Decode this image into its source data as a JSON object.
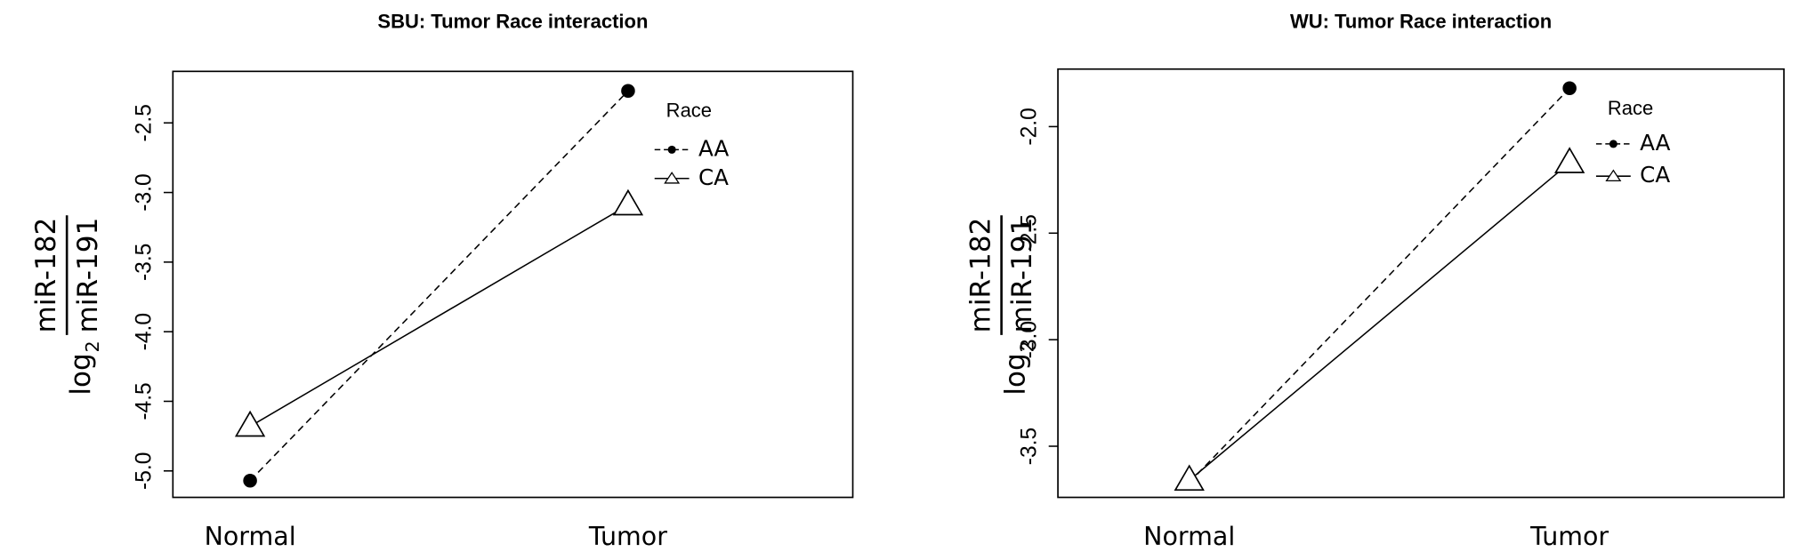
{
  "chart_data": [
    {
      "type": "line",
      "title": "SBU: Tumor Race interaction",
      "ylabel": {
        "prefix": "log",
        "subscript": "2",
        "numerator": "miR-182",
        "denominator": "miR-191"
      },
      "categories": [
        "Normal",
        "Tumor"
      ],
      "legend_title": "Race",
      "series": [
        {
          "name": "AA",
          "color": "#000000",
          "marker": "circle",
          "dashed": true,
          "values": [
            -5.07,
            -2.27
          ]
        },
        {
          "name": "CA",
          "color": "#000000",
          "marker": "triangle",
          "dashed": false,
          "values": [
            -4.68,
            -3.09
          ]
        }
      ],
      "ylim": [
        -5.19,
        -2.13
      ],
      "yticks": [
        {
          "value": -5,
          "label": "-5.0"
        },
        -4.5,
        {
          "value": -4,
          "label": "-4.0"
        },
        -3.5,
        {
          "value": -3,
          "label": "-3.0"
        },
        -2.5
      ],
      "grid": false
    },
    {
      "type": "line",
      "title": "WU: Tumor Race interaction",
      "ylabel": {
        "prefix": "log",
        "subscript": "2",
        "numerator": "miR-182",
        "denominator": "miR-191"
      },
      "categories": [
        "Normal",
        "Tumor"
      ],
      "legend_title": "Race",
      "series": [
        {
          "name": "AA",
          "color": "#000000",
          "marker": "circle",
          "dashed": true,
          "values": [
            -3.67,
            -1.82
          ]
        },
        {
          "name": "CA",
          "color": "#000000",
          "marker": "triangle",
          "dashed": false,
          "values": [
            -3.66,
            -2.17
          ]
        }
      ],
      "ylim": [
        -3.74,
        -1.73
      ],
      "yticks": [
        -3.5,
        {
          "value": -3,
          "label": "-3.0"
        },
        -2.5,
        {
          "value": -2,
          "label": "-2.0"
        }
      ],
      "grid": false
    }
  ]
}
